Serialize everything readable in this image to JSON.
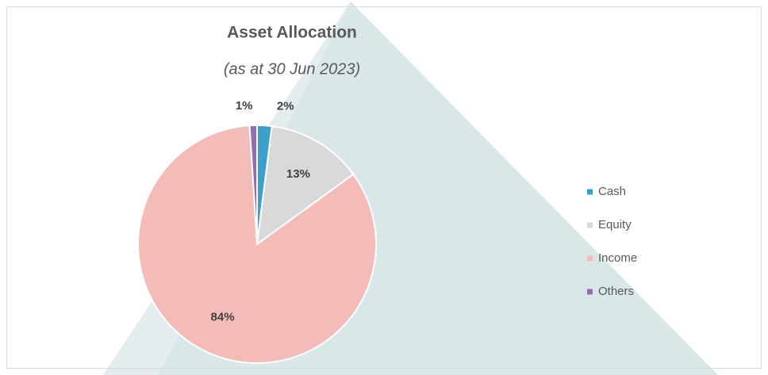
{
  "chart_data": {
    "type": "pie",
    "title": "Asset Allocation",
    "subtitle": "(as at 30 Jun 2023)",
    "categories": [
      "Cash",
      "Equity",
      "Income",
      "Others"
    ],
    "values": [
      2,
      13,
      84,
      1
    ],
    "value_labels": [
      "2%",
      "13%",
      "84%",
      "1%"
    ],
    "colors": [
      "#3c9fca",
      "#d9d9d9",
      "#f4bcb8",
      "#8f6fae"
    ],
    "legend": "right"
  }
}
